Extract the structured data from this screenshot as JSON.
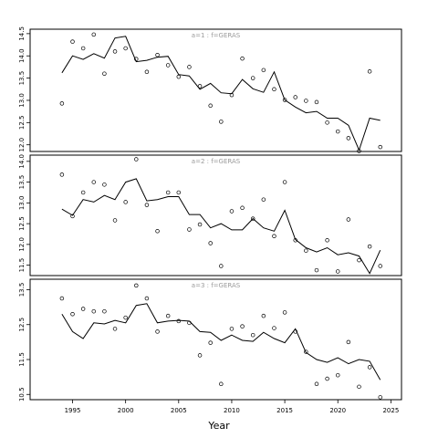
{
  "chart_data": {
    "type": "line",
    "xlabel": "Year",
    "xlim": [
      1991,
      2026
    ],
    "xticks": [
      1995,
      2000,
      2005,
      2010,
      2015,
      2020,
      2025
    ],
    "years": [
      1994,
      1995,
      1996,
      1997,
      1998,
      1999,
      2000,
      2001,
      2002,
      2003,
      2004,
      2005,
      2006,
      2007,
      2008,
      2009,
      2010,
      2011,
      2012,
      2013,
      2014,
      2015,
      2016,
      2017,
      2018,
      2019,
      2020,
      2021,
      2022,
      2023,
      2024
    ],
    "panels": [
      {
        "label": "a=1  :  f=GERAS",
        "ylim": [
          11.85,
          14.6
        ],
        "yticks": [
          "12.0",
          "12.5",
          "13.0",
          "13.5",
          "14.0",
          "14.5"
        ],
        "yticks_num": [
          12.0,
          12.5,
          13.0,
          13.5,
          14.0,
          14.5
        ],
        "line": [
          13.62,
          14.0,
          13.92,
          14.05,
          13.95,
          14.4,
          14.44,
          13.87,
          13.9,
          13.97,
          13.99,
          13.58,
          13.55,
          13.25,
          13.38,
          13.17,
          13.15,
          13.47,
          13.26,
          13.18,
          13.64,
          13.01,
          12.85,
          12.72,
          12.75,
          12.6,
          12.6,
          12.44,
          11.88,
          12.6,
          12.55
        ],
        "points": [
          12.93,
          14.32,
          14.17,
          14.48,
          13.6,
          14.1,
          14.17,
          13.93,
          13.64,
          14.02,
          13.79,
          13.53,
          13.75,
          13.32,
          12.88,
          12.52,
          13.12,
          13.94,
          13.5,
          13.68,
          13.25,
          13.01,
          13.07,
          12.99,
          12.96,
          12.5,
          12.3,
          12.15,
          11.86,
          13.65,
          11.95
        ]
      },
      {
        "label": "a=2  :  f=GERAS",
        "ylim": [
          11.25,
          14.15
        ],
        "yticks": [
          "11.5",
          "12.0",
          "12.5",
          "13.0",
          "13.5",
          "14.0"
        ],
        "yticks_num": [
          11.5,
          12.0,
          12.5,
          13.0,
          13.5,
          14.0
        ],
        "line": [
          12.85,
          12.7,
          13.08,
          13.02,
          13.18,
          13.08,
          13.5,
          13.58,
          13.05,
          13.08,
          13.15,
          13.15,
          12.72,
          12.72,
          12.4,
          12.5,
          12.35,
          12.35,
          12.62,
          12.4,
          12.32,
          12.82,
          12.12,
          11.92,
          11.82,
          11.92,
          11.75,
          11.8,
          11.72,
          11.3,
          11.86
        ],
        "points": [
          13.68,
          12.68,
          13.25,
          13.5,
          13.44,
          12.58,
          13.02,
          14.05,
          12.95,
          12.32,
          13.25,
          13.25,
          12.36,
          12.48,
          12.03,
          11.48,
          12.8,
          12.88,
          12.62,
          13.08,
          12.2,
          13.5,
          12.1,
          11.85,
          11.38,
          12.1,
          11.35,
          12.6,
          11.62,
          11.95,
          11.48
        ]
      },
      {
        "label": "a=3  :  f=GERAS",
        "ylim": [
          10.35,
          13.8
        ],
        "yticks": [
          "10.5",
          "11.5",
          "12.5",
          "13.5"
        ],
        "yticks_num": [
          10.5,
          11.5,
          12.5,
          13.5
        ],
        "line": [
          12.8,
          12.3,
          12.1,
          12.55,
          12.52,
          12.62,
          12.55,
          13.05,
          13.1,
          12.55,
          12.6,
          12.62,
          12.6,
          12.3,
          12.28,
          12.05,
          12.2,
          12.05,
          12.02,
          12.28,
          12.1,
          11.98,
          12.38,
          11.7,
          11.5,
          11.42,
          11.55,
          11.38,
          11.5,
          11.45,
          10.92
        ],
        "points": [
          13.25,
          12.8,
          12.95,
          12.88,
          12.88,
          12.38,
          12.7,
          13.62,
          13.25,
          12.3,
          12.75,
          12.6,
          12.55,
          11.62,
          11.98,
          10.8,
          12.38,
          12.45,
          12.2,
          12.75,
          12.4,
          12.85,
          12.3,
          11.72,
          10.8,
          10.95,
          11.05,
          12.0,
          10.72,
          11.28,
          10.42
        ]
      }
    ]
  }
}
